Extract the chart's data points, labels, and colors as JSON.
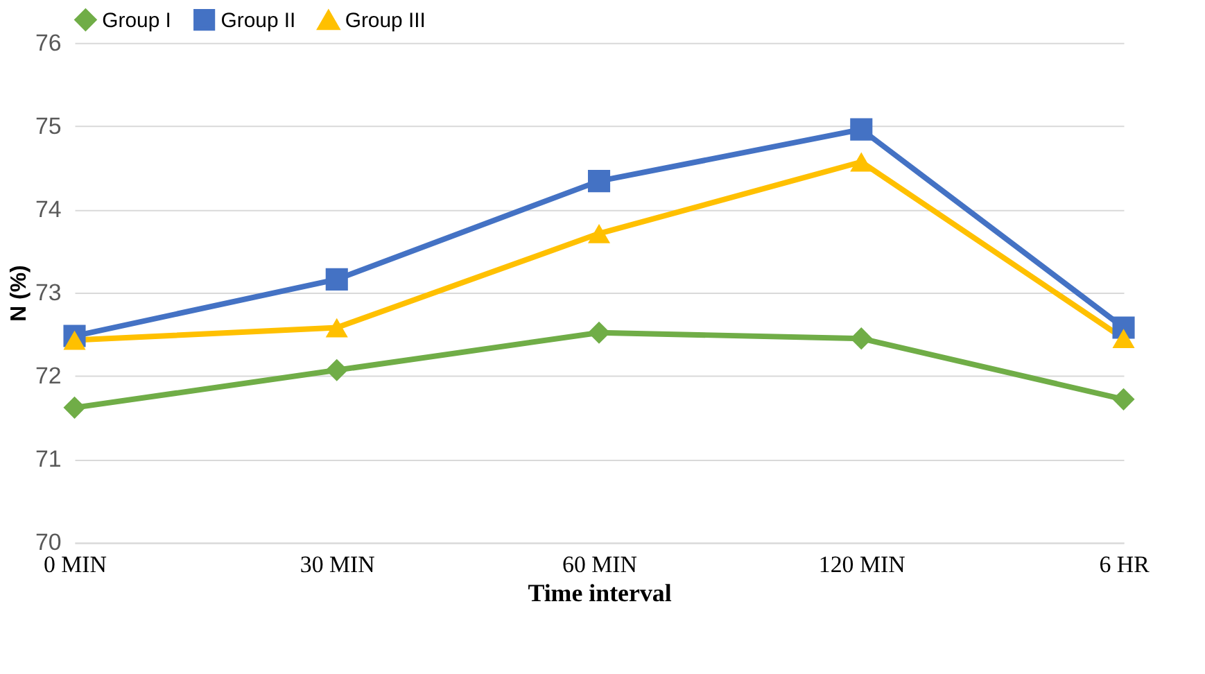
{
  "chart_data": {
    "type": "line",
    "xlabel": "Time interval",
    "ylabel": "N (%)",
    "categories": [
      "0 MIN",
      "30 MIN",
      "60 MIN",
      "120 MIN",
      "6 HR"
    ],
    "series": [
      {
        "name": "Group I",
        "color": "#70ad47",
        "marker": "diamond",
        "values": [
          71.62,
          72.07,
          72.52,
          72.45,
          71.72
        ]
      },
      {
        "name": "Group II",
        "color": "#4472c4",
        "marker": "square",
        "values": [
          72.48,
          73.16,
          74.34,
          74.96,
          72.58
        ]
      },
      {
        "name": "Group III",
        "color": "#ffc000",
        "marker": "triangle",
        "values": [
          72.43,
          72.58,
          73.71,
          74.57,
          72.45
        ]
      }
    ],
    "ylim": [
      70,
      76
    ],
    "yticks": [
      70,
      71,
      72,
      73,
      74,
      75,
      76
    ],
    "grid": "y",
    "legend": "top",
    "line_style": "solid"
  }
}
